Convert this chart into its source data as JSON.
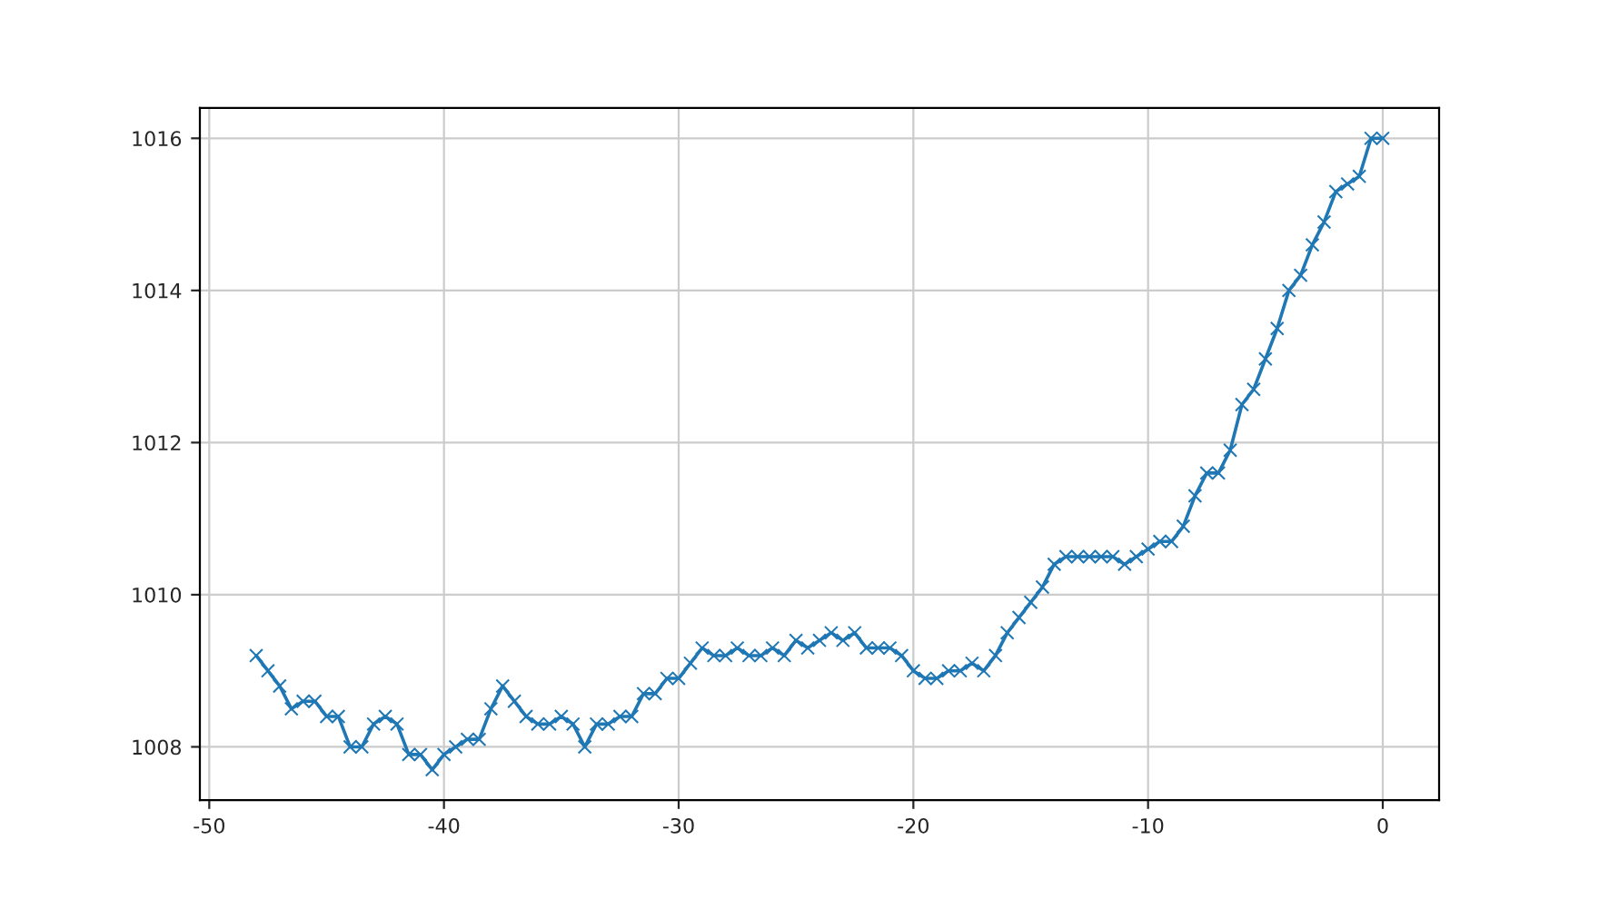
{
  "chart_data": {
    "type": "line",
    "marker": "cross",
    "grid": true,
    "x": [
      -48,
      -47.5,
      -47,
      -46.5,
      -46,
      -45.5,
      -45,
      -44.5,
      -44,
      -43.5,
      -43,
      -42.5,
      -42,
      -41.5,
      -41,
      -40.5,
      -40,
      -39.5,
      -39,
      -38.5,
      -38,
      -37.5,
      -37,
      -36.5,
      -36,
      -35.5,
      -35,
      -34.5,
      -34,
      -33.5,
      -33,
      -32.5,
      -32,
      -31.5,
      -31,
      -30.5,
      -30,
      -29.5,
      -29,
      -28.5,
      -28,
      -27.5,
      -27,
      -26.5,
      -26,
      -25.5,
      -25,
      -24.5,
      -24,
      -23.5,
      -23,
      -22.5,
      -22,
      -21.5,
      -21,
      -20.5,
      -20,
      -19.5,
      -19,
      -18.5,
      -18,
      -17.5,
      -17,
      -16.5,
      -16,
      -15.5,
      -15,
      -14.5,
      -14,
      -13.5,
      -13,
      -12.5,
      -12,
      -11.5,
      -11,
      -10.5,
      -10,
      -9.5,
      -9,
      -8.5,
      -8,
      -7.5,
      -7,
      -6.5,
      -6,
      -5.5,
      -5,
      -4.5,
      -4,
      -3.5,
      -3,
      -2.5,
      -2,
      -1.5,
      -1,
      -0.5,
      0
    ],
    "series": [
      {
        "color": "#1f77b4",
        "values": [
          1009.2,
          1009.0,
          1008.8,
          1008.5,
          1008.6,
          1008.6,
          1008.4,
          1008.4,
          1008.0,
          1008.0,
          1008.3,
          1008.4,
          1008.3,
          1007.9,
          1007.9,
          1007.7,
          1007.9,
          1008.0,
          1008.1,
          1008.1,
          1008.5,
          1008.8,
          1008.6,
          1008.4,
          1008.3,
          1008.3,
          1008.4,
          1008.3,
          1008.0,
          1008.3,
          1008.3,
          1008.4,
          1008.4,
          1008.7,
          1008.7,
          1008.9,
          1008.9,
          1009.1,
          1009.3,
          1009.2,
          1009.2,
          1009.3,
          1009.2,
          1009.2,
          1009.3,
          1009.2,
          1009.4,
          1009.3,
          1009.4,
          1009.5,
          1009.4,
          1009.5,
          1009.3,
          1009.3,
          1009.3,
          1009.2,
          1009.0,
          1008.9,
          1008.9,
          1009.0,
          1009.0,
          1009.1,
          1009.0,
          1009.2,
          1009.5,
          1009.7,
          1009.9,
          1010.1,
          1010.4,
          1010.5,
          1010.5,
          1010.5,
          1010.5,
          1010.5,
          1010.4,
          1010.5,
          1010.6,
          1010.7,
          1010.7,
          1010.9,
          1011.3,
          1011.6,
          1011.6,
          1011.9,
          1012.5,
          1012.7,
          1013.1,
          1013.5,
          1014.0,
          1014.2,
          1014.6,
          1014.9,
          1015.3,
          1015.4,
          1015.5,
          1016.0,
          1016.0
        ]
      }
    ],
    "xlim": [
      -50.4,
      2.4
    ],
    "ylim": [
      1007.3,
      1016.4
    ],
    "xticks": [
      -50,
      -40,
      -30,
      -20,
      -10,
      0
    ],
    "yticks": [
      1008,
      1010,
      1012,
      1014,
      1016
    ]
  }
}
